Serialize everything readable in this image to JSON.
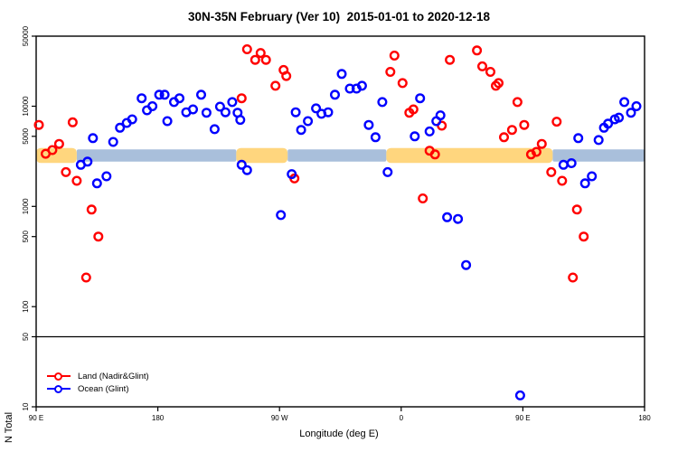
{
  "title": "30N-35N February (Ver 10)  2015-01-01 to 2020-12-18",
  "colors": {
    "land": "#ff0000",
    "ocean": "#0000ff",
    "band_land": "#FFD67E",
    "band_ocean": "#A9BFDB",
    "axis": "#000000"
  },
  "chart_data": {
    "type": "scatter",
    "title": "30N-35N February (Ver 10)  2015-01-01 to 2020-12-18",
    "xlabel": "Longitude (deg E)",
    "ylabel": "N Total",
    "x_axis": {
      "range": [
        90,
        540
      ],
      "ticks": [
        {
          "deg": 90,
          "label": "90 E"
        },
        {
          "deg": 180,
          "label": "180"
        },
        {
          "deg": 270,
          "label": "90 W"
        },
        {
          "deg": 360,
          "label": "0"
        },
        {
          "deg": 450,
          "label": "90 E"
        },
        {
          "deg": 540,
          "label": "180"
        }
      ]
    },
    "y_axis": {
      "scale": "log",
      "range": [
        10,
        50000
      ],
      "ticks": [
        50000,
        10000,
        5000,
        1000,
        500,
        100,
        50,
        10
      ]
    },
    "reference_line_y": 50,
    "surface_band": {
      "y_range": [
        2800,
        3700
      ],
      "segments": [
        {
          "surface": "land",
          "from": 90,
          "to": 120
        },
        {
          "surface": "ocean",
          "from": 120,
          "to": 238
        },
        {
          "surface": "land",
          "from": 238,
          "to": 276
        },
        {
          "surface": "ocean",
          "from": 276,
          "to": 349
        },
        {
          "surface": "land",
          "from": 349,
          "to": 472
        },
        {
          "surface": "ocean",
          "from": 472,
          "to": 540
        }
      ]
    },
    "legend_position": "bottom-left",
    "series": [
      {
        "name": "Land (Nadir&Glint)",
        "color": "#ff0000",
        "points": [
          [
            92,
            6500
          ],
          [
            117,
            6900
          ],
          [
            97,
            3350
          ],
          [
            102,
            3650
          ],
          [
            107,
            4200
          ],
          [
            112,
            2200
          ],
          [
            120,
            1800
          ],
          [
            131,
            930
          ],
          [
            136,
            500
          ],
          [
            127,
            195
          ],
          [
            242,
            12000
          ],
          [
            246,
            37000
          ],
          [
            252,
            29000
          ],
          [
            256,
            34000
          ],
          [
            260,
            29000
          ],
          [
            267,
            16000
          ],
          [
            273,
            23000
          ],
          [
            275,
            20000
          ],
          [
            281,
            1900
          ],
          [
            352,
            22000
          ],
          [
            355,
            32000
          ],
          [
            361,
            17000
          ],
          [
            366,
            8600
          ],
          [
            369,
            9300
          ],
          [
            376,
            1200
          ],
          [
            381,
            3600
          ],
          [
            385,
            3300
          ],
          [
            390,
            6400
          ],
          [
            396,
            29000
          ],
          [
            416,
            36000
          ],
          [
            420,
            25000
          ],
          [
            426,
            22000
          ],
          [
            430,
            16000
          ],
          [
            432,
            17000
          ],
          [
            436,
            4900
          ],
          [
            442,
            5800
          ],
          [
            446,
            11000
          ],
          [
            451,
            6500
          ],
          [
            456,
            3300
          ],
          [
            460,
            3500
          ],
          [
            464,
            4200
          ],
          [
            471,
            2200
          ],
          [
            475,
            7000
          ],
          [
            479,
            1800
          ],
          [
            487,
            195
          ],
          [
            490,
            930
          ],
          [
            495,
            500
          ]
        ]
      },
      {
        "name": "Ocean (Glint)",
        "color": "#0000ff",
        "points": [
          [
            123,
            2600
          ],
          [
            128,
            2800
          ],
          [
            132,
            4800
          ],
          [
            135,
            1700
          ],
          [
            142,
            2000
          ],
          [
            147,
            4400
          ],
          [
            152,
            6100
          ],
          [
            157,
            6800
          ],
          [
            161,
            7400
          ],
          [
            168,
            12000
          ],
          [
            172,
            9100
          ],
          [
            176,
            10000
          ],
          [
            181,
            13000
          ],
          [
            185,
            13000
          ],
          [
            187,
            7100
          ],
          [
            192,
            11000
          ],
          [
            196,
            12000
          ],
          [
            201,
            8700
          ],
          [
            206,
            9300
          ],
          [
            212,
            13000
          ],
          [
            216,
            8600
          ],
          [
            222,
            5900
          ],
          [
            226,
            9900
          ],
          [
            230,
            8700
          ],
          [
            235,
            11000
          ],
          [
            239,
            8600
          ],
          [
            241,
            7300
          ],
          [
            242,
            2600
          ],
          [
            246,
            2300
          ],
          [
            271,
            820
          ],
          [
            279,
            2100
          ],
          [
            282,
            8700
          ],
          [
            286,
            5800
          ],
          [
            291,
            7100
          ],
          [
            297,
            9500
          ],
          [
            301,
            8400
          ],
          [
            306,
            8700
          ],
          [
            311,
            13000
          ],
          [
            316,
            21000
          ],
          [
            322,
            15000
          ],
          [
            327,
            15000
          ],
          [
            331,
            16000
          ],
          [
            336,
            6500
          ],
          [
            341,
            4900
          ],
          [
            346,
            11000
          ],
          [
            350,
            2200
          ],
          [
            370,
            5000
          ],
          [
            374,
            12000
          ],
          [
            381,
            5600
          ],
          [
            386,
            7100
          ],
          [
            389,
            8100
          ],
          [
            394,
            780
          ],
          [
            402,
            750
          ],
          [
            408,
            260
          ],
          [
            448,
            13
          ],
          [
            480,
            2600
          ],
          [
            486,
            2700
          ],
          [
            491,
            4800
          ],
          [
            496,
            1700
          ],
          [
            501,
            2000
          ],
          [
            506,
            4600
          ],
          [
            510,
            6100
          ],
          [
            513,
            6700
          ],
          [
            518,
            7400
          ],
          [
            521,
            7700
          ],
          [
            525,
            11000
          ],
          [
            530,
            8600
          ],
          [
            534,
            10000
          ]
        ]
      }
    ]
  }
}
